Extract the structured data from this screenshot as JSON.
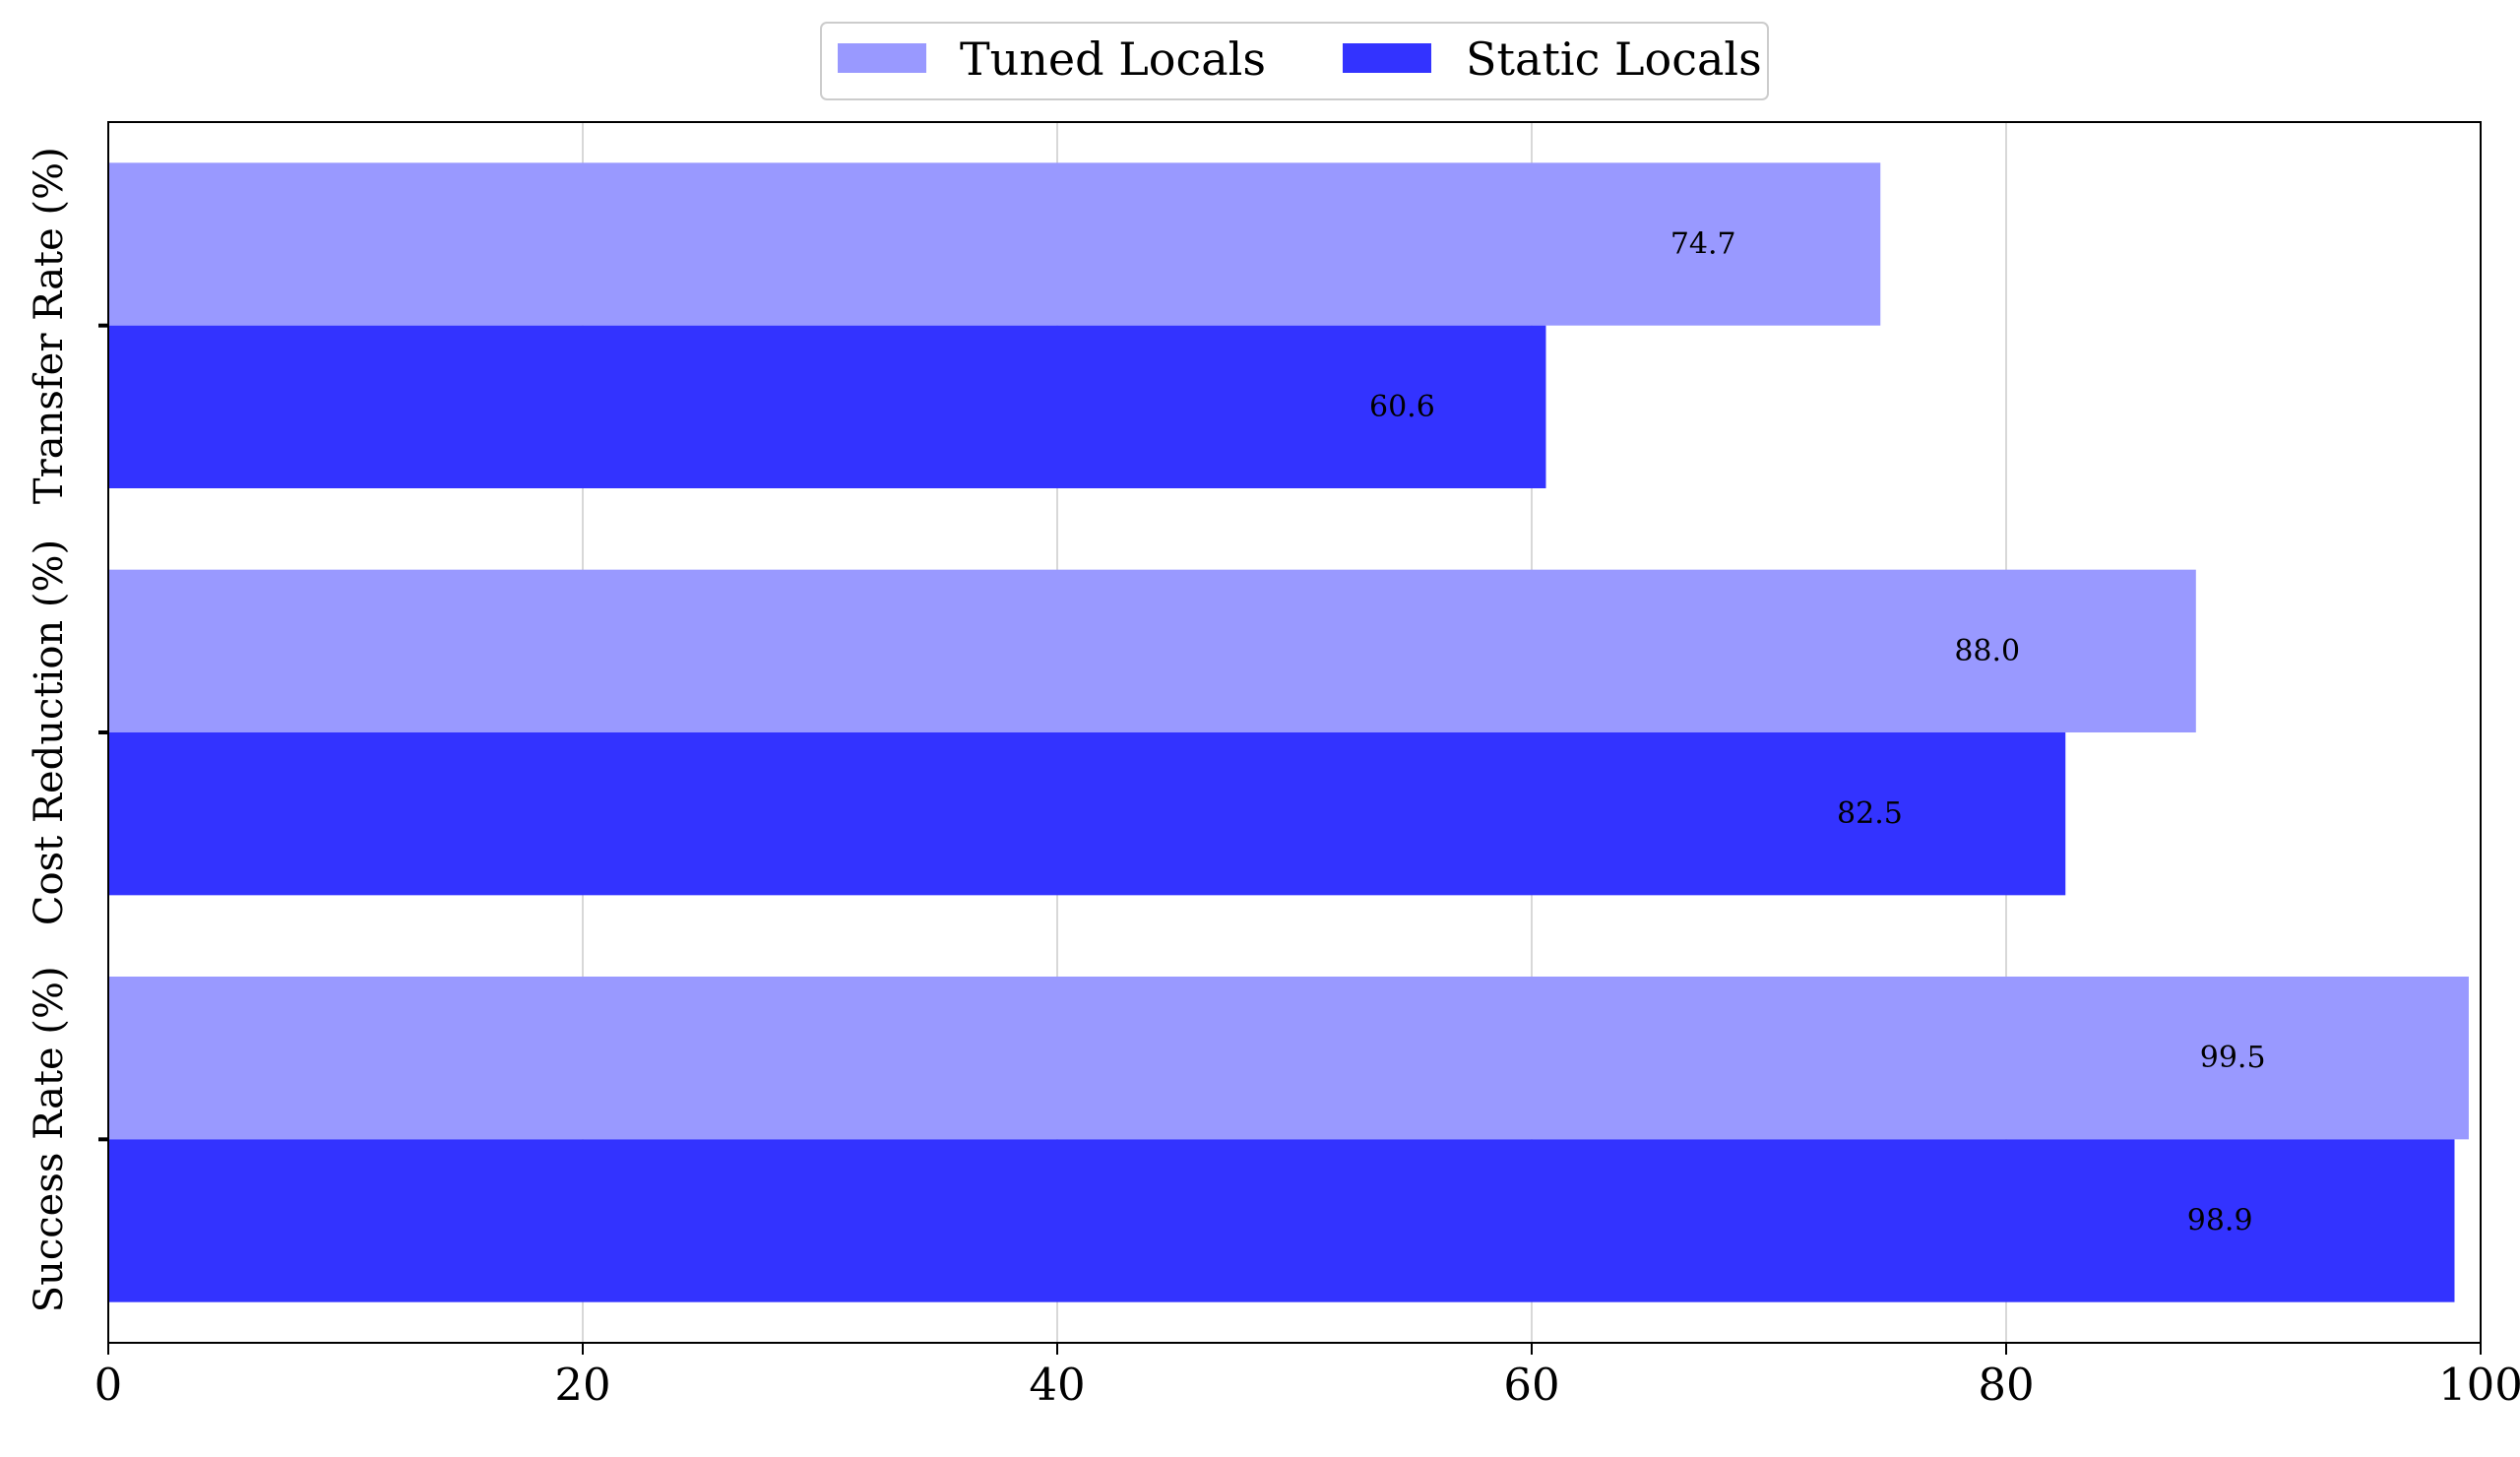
{
  "chart_data": {
    "type": "bar",
    "orientation": "horizontal",
    "categories": [
      "Transfer Rate (%)",
      "Cost Reduction (%)",
      "Success Rate (%)"
    ],
    "series": [
      {
        "name": "Tuned Locals",
        "color": "#9999ff",
        "values": [
          74.7,
          88.0,
          99.5
        ],
        "labels": [
          "74.7",
          "88.0",
          "99.5"
        ]
      },
      {
        "name": "Static Locals",
        "color": "#3333ff",
        "values": [
          60.6,
          82.5,
          98.9
        ],
        "labels": [
          "60.6",
          "82.5",
          "98.9"
        ]
      }
    ],
    "xticks": [
      0,
      20,
      40,
      60,
      80,
      100
    ],
    "xtick_labels": [
      "0",
      "20",
      "40",
      "60",
      "80",
      "100"
    ],
    "xlim": [
      0,
      100
    ],
    "title": "",
    "xlabel": "",
    "ylabel": "",
    "grid": "vertical",
    "legend_position": "top-center",
    "value_labels": true
  }
}
